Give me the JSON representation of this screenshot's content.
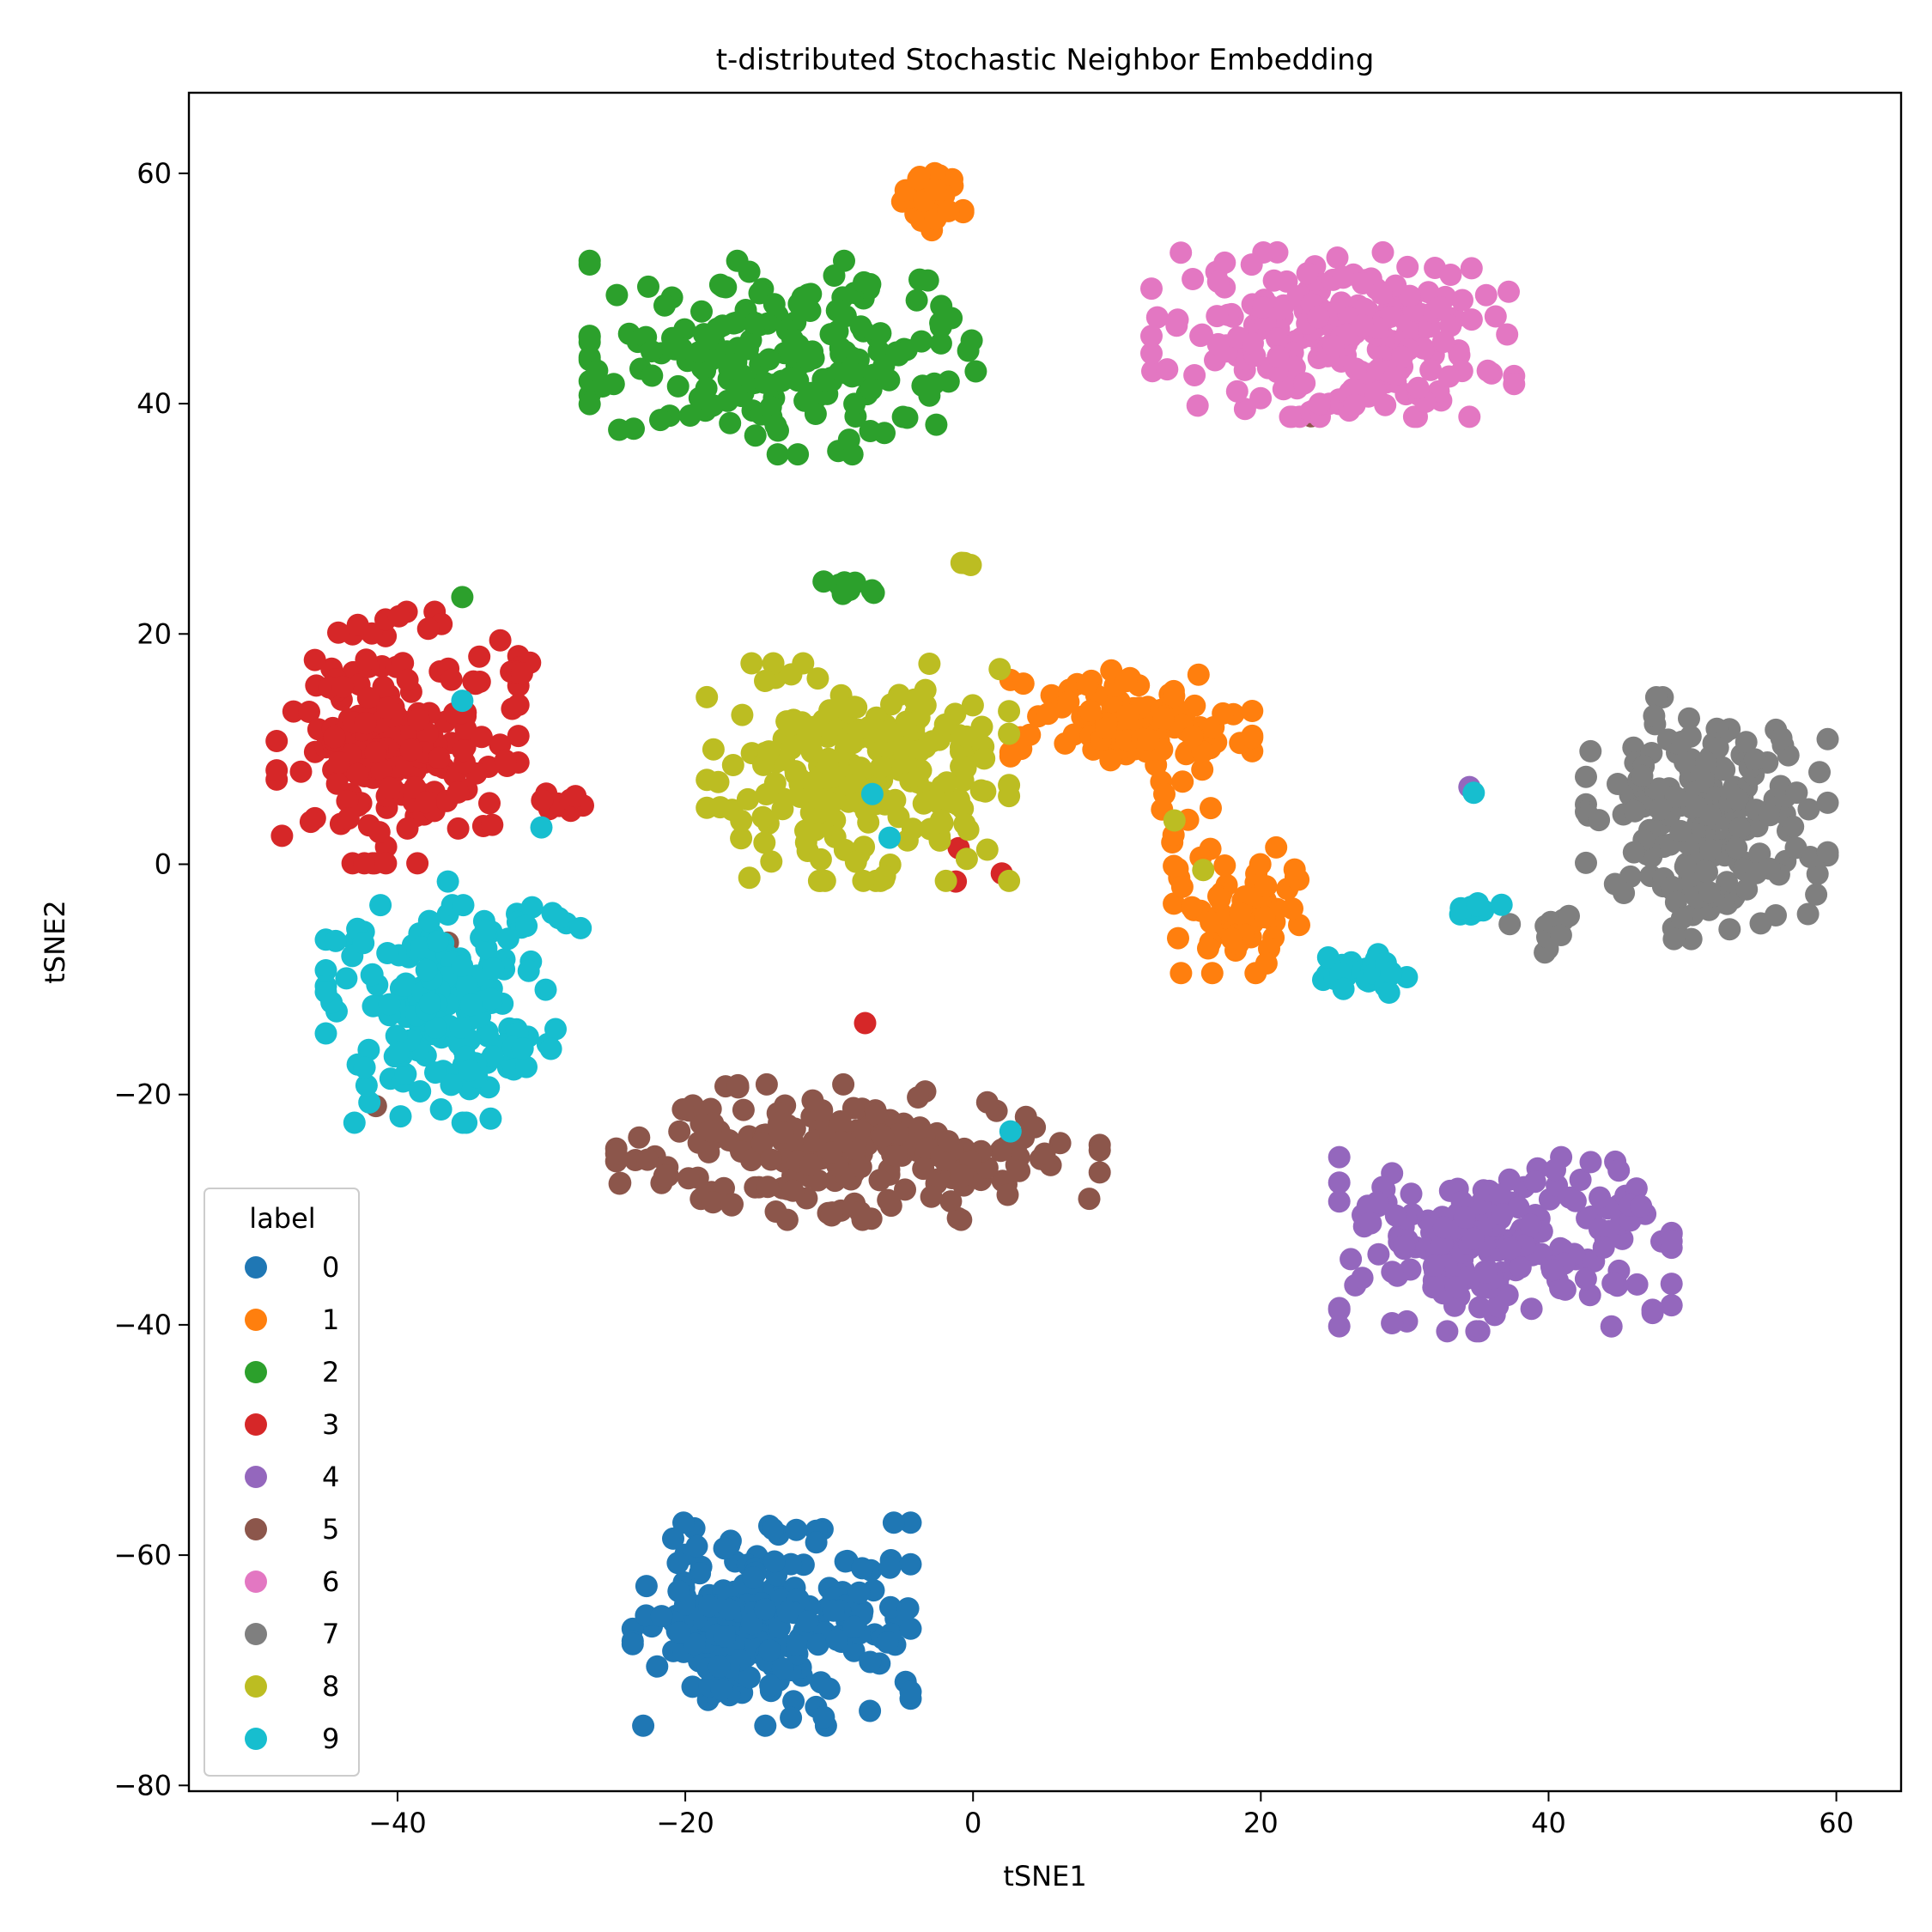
{
  "chart_data": {
    "type": "scatter",
    "title": "t-distributed Stochastic Neighbor Embedding",
    "xlabel": "tSNE1",
    "ylabel": "tSNE2",
    "xlim": [
      -54.5,
      64.5
    ],
    "ylim": [
      -80.5,
      67
    ],
    "xticks": [
      -40,
      -20,
      0,
      20,
      40,
      60
    ],
    "yticks": [
      -80,
      -60,
      -40,
      -20,
      0,
      20,
      40,
      60
    ],
    "xtick_labels": [
      "−40",
      "−20",
      "0",
      "20",
      "40",
      "60"
    ],
    "ytick_labels": [
      "−80",
      "−60",
      "−40",
      "−20",
      "0",
      "20",
      "40",
      "60"
    ],
    "grid": false,
    "legend": {
      "title": "label",
      "position": "lower-left",
      "entries": [
        "0",
        "1",
        "2",
        "3",
        "4",
        "5",
        "6",
        "7",
        "8",
        "9"
      ]
    },
    "series": [
      {
        "name": "0",
        "color": "#1f77b4",
        "clusters": [
          {
            "cx": -14,
            "cy": -66,
            "sx": 4.6,
            "sy": 4.2,
            "n": 220
          }
        ]
      },
      {
        "name": "1",
        "color": "#ff7f0e",
        "clusters": [
          {
            "cx": -3,
            "cy": 58,
            "sx": 1.1,
            "sy": 1.4,
            "n": 35
          },
          {
            "cx": 11,
            "cy": 12,
            "sx": 4.0,
            "sy": 2.3,
            "n": 110
          },
          {
            "cx": 19,
            "cy": -4,
            "sx": 2.4,
            "sy": 2.6,
            "n": 60
          },
          {
            "cx": 14,
            "cy": 4,
            "sx": 1.2,
            "sy": 1.0,
            "n": 6
          }
        ]
      },
      {
        "name": "2",
        "color": "#2ca02c",
        "clusters": [
          {
            "cx": -13,
            "cy": 44,
            "sx": 6.5,
            "sy": 4.0,
            "n": 200
          },
          {
            "cx": -9,
            "cy": 24,
            "sx": 1.0,
            "sy": 0.4,
            "n": 10
          }
        ],
        "points": [
          [
            -35.5,
            23.2
          ]
        ]
      },
      {
        "name": "3",
        "color": "#d62728",
        "clusters": [
          {
            "cx": -40,
            "cy": 11,
            "sx": 4.0,
            "sy": 5.2,
            "n": 200
          },
          {
            "cx": -29,
            "cy": 5.5,
            "sx": 0.9,
            "sy": 0.7,
            "n": 10
          },
          {
            "cx": -32,
            "cy": 17,
            "sx": 0.6,
            "sy": 0.3,
            "n": 5
          }
        ],
        "points": [
          [
            -1,
            1.4
          ],
          [
            -1.2,
            -1.5
          ],
          [
            2,
            -0.8
          ],
          [
            -7.5,
            -13.8
          ],
          [
            51,
            -3.5
          ],
          [
            -32.5,
            9.0
          ]
        ]
      },
      {
        "name": "4",
        "color": "#9467bd",
        "clusters": [
          {
            "cx": 37,
            "cy": -33,
            "sx": 5.5,
            "sy": 3.6,
            "n": 200
          }
        ],
        "points": [
          [
            34.5,
            6.7
          ]
        ]
      },
      {
        "name": "5",
        "color": "#8c564b",
        "clusters": [
          {
            "cx": -8,
            "cy": -25,
            "sx": 8.0,
            "sy": 2.8,
            "n": 220
          }
        ],
        "points": [
          [
            23.5,
            38.9
          ],
          [
            -41.5,
            -21
          ],
          [
            -36.5,
            -6.8
          ]
        ]
      },
      {
        "name": "6",
        "color": "#e377c2",
        "clusters": [
          {
            "cx": 25,
            "cy": 46,
            "sx": 6.0,
            "sy": 3.4,
            "n": 230
          }
        ]
      },
      {
        "name": "7",
        "color": "#7f7f7f",
        "clusters": [
          {
            "cx": 51,
            "cy": 4,
            "sx": 4.0,
            "sy": 5.0,
            "n": 200
          },
          {
            "cx": 40.5,
            "cy": -6,
            "sx": 0.8,
            "sy": 1.2,
            "n": 10
          }
        ],
        "points": [
          [
            37.3,
            -5.2
          ]
        ]
      },
      {
        "name": "8",
        "color": "#bcbd22",
        "clusters": [
          {
            "cx": -8,
            "cy": 8,
            "sx": 5.0,
            "sy": 4.5,
            "n": 230
          },
          {
            "cx": -0.5,
            "cy": 26.2,
            "sx": 0.4,
            "sy": 0.2,
            "n": 3
          }
        ],
        "points": [
          [
            14,
            3.8
          ],
          [
            16,
            -0.5
          ]
        ]
      },
      {
        "name": "9",
        "color": "#17becf",
        "clusters": [
          {
            "cx": -37,
            "cy": -13,
            "sx": 3.8,
            "sy": 4.5,
            "n": 180
          },
          {
            "cx": 27,
            "cy": -9.5,
            "sx": 1.5,
            "sy": 0.8,
            "n": 25
          },
          {
            "cx": 35,
            "cy": -4,
            "sx": 1.0,
            "sy": 0.4,
            "n": 10
          },
          {
            "cx": -31,
            "cy": -5,
            "sx": 1.8,
            "sy": 0.6,
            "n": 10
          }
        ],
        "points": [
          [
            -35.5,
            14.2
          ],
          [
            -30,
            3.2
          ],
          [
            -7,
            6.1
          ],
          [
            -5.8,
            2.3
          ],
          [
            2.6,
            -23.2
          ],
          [
            34.8,
            6.2
          ],
          [
            -36.5,
            -1.5
          ]
        ]
      }
    ]
  }
}
